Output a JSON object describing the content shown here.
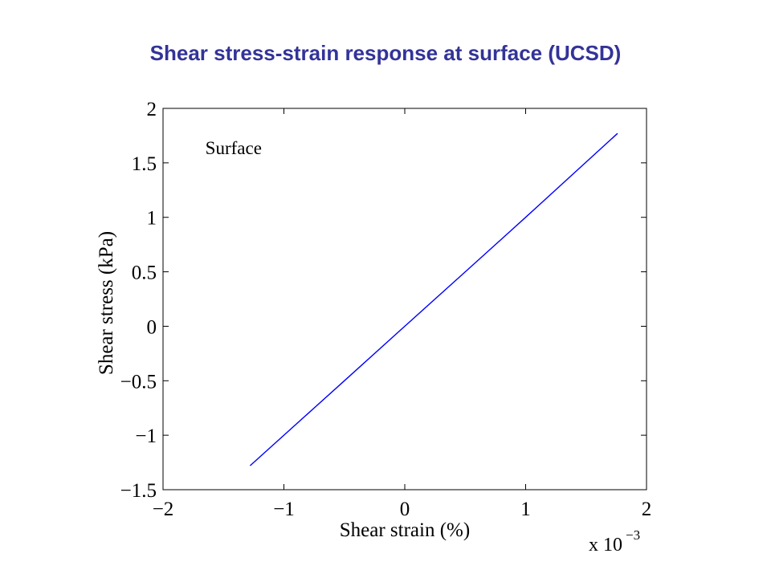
{
  "slide": {
    "title": "Shear stress-strain response at surface (UCSD)",
    "title_color": "#333399"
  },
  "chart_data": {
    "type": "line",
    "xlabel": "Shear strain (%)",
    "ylabel": "Shear stress (kPa)",
    "xlim": [
      -0.002,
      0.002
    ],
    "ylim": [
      -1.5,
      2
    ],
    "x_multiplier": {
      "base": "x 10",
      "exponent": "−3"
    },
    "xticks": [
      {
        "value": -0.002,
        "label": "−2"
      },
      {
        "value": -0.001,
        "label": "−1"
      },
      {
        "value": 0,
        "label": "0"
      },
      {
        "value": 0.001,
        "label": "1"
      },
      {
        "value": 0.002,
        "label": "2"
      }
    ],
    "yticks": [
      {
        "value": -1.5,
        "label": "−1.5"
      },
      {
        "value": -1,
        "label": "−1"
      },
      {
        "value": -0.5,
        "label": "−0.5"
      },
      {
        "value": 0,
        "label": "0"
      },
      {
        "value": 0.5,
        "label": "0.5"
      },
      {
        "value": 1,
        "label": "1"
      },
      {
        "value": 1.5,
        "label": "1.5"
      },
      {
        "value": 2,
        "label": "2"
      }
    ],
    "grid": false,
    "annotation": {
      "text": "Surface",
      "x": -0.00165,
      "y": 1.58
    },
    "series": [
      {
        "color": "#0000ff",
        "x": [
          -0.00128,
          -0.0005,
          0,
          0.0005,
          0.001,
          0.00176
        ],
        "y": [
          -1.28,
          -0.5,
          0,
          0.5,
          1.0,
          1.77
        ]
      }
    ]
  }
}
